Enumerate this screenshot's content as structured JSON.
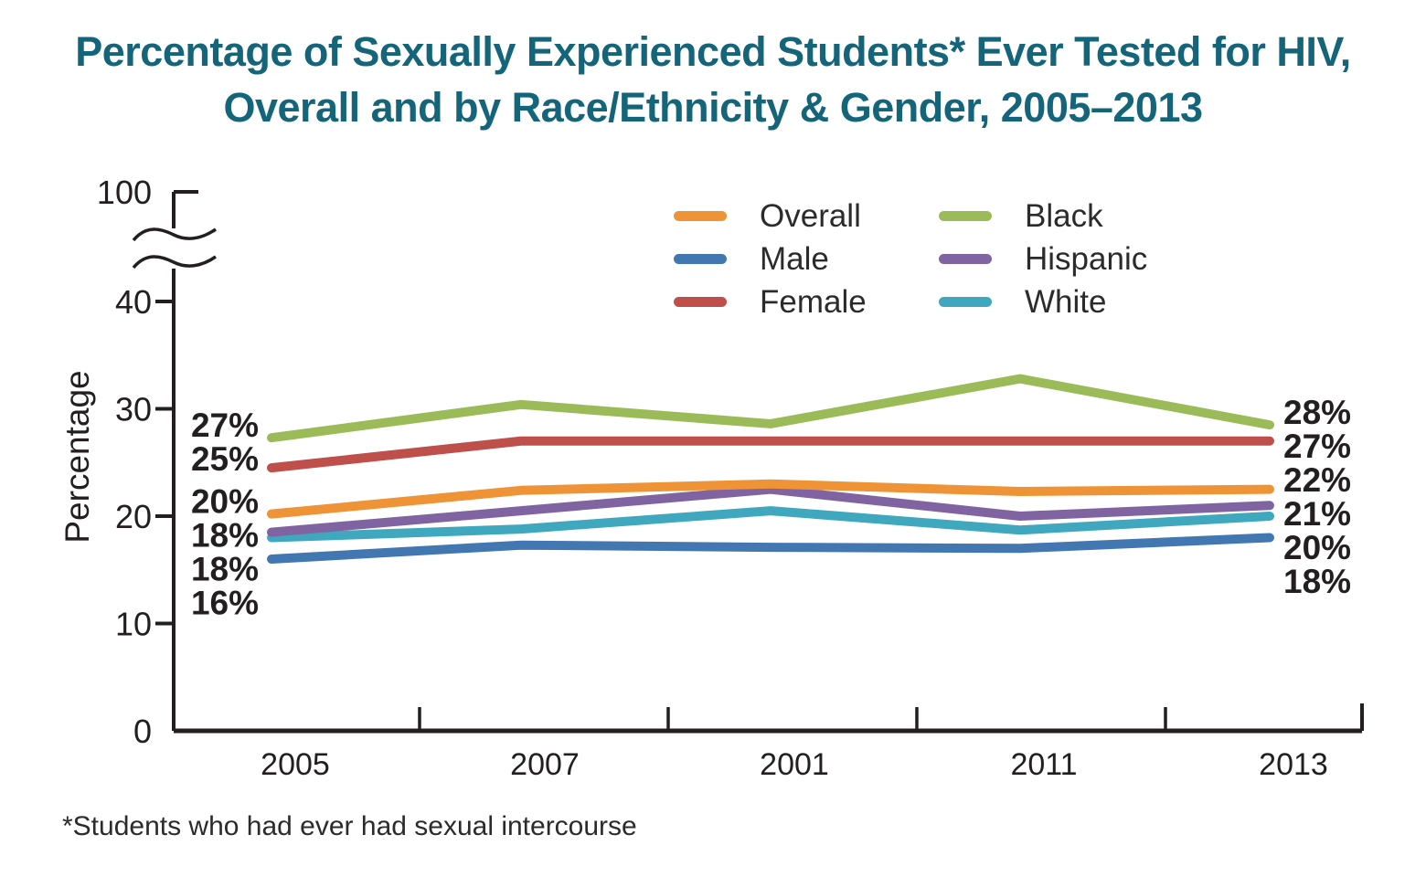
{
  "title": {
    "line1": "Percentage of Sexually Experienced Students* Ever Tested for HIV,",
    "line2": "Overall and by Race/Ethnicity & Gender, 2005–2013",
    "color": "#15657A"
  },
  "footnote": "*Students who had ever had sexual intercourse",
  "y_axis": {
    "label": "Percentage",
    "tick_labels": [
      "0",
      "10",
      "20",
      "30",
      "40",
      "100"
    ],
    "has_axis_break": true,
    "break_between": [
      40,
      100
    ]
  },
  "x_axis": {
    "labels": [
      "2005",
      "2007",
      "2001",
      "2011",
      "2013"
    ]
  },
  "legend": {
    "columns": [
      [
        "Overall",
        "Male",
        "Female"
      ],
      [
        "Black",
        "Hispanic",
        "White"
      ]
    ]
  },
  "chart_data": {
    "type": "line",
    "title": "Percentage of Sexually Experienced Students Ever Tested for HIV, Overall and by Race/Ethnicity & Gender, 2005–2013",
    "x": [
      "2005",
      "2007",
      "2001",
      "2011",
      "2013"
    ],
    "ylabel": "Percentage",
    "ylim_visible": [
      0,
      40
    ],
    "broken_axis_top_tick": 100,
    "grid": false,
    "legend_position": "top-center-two-columns",
    "axis_color": "#231F20",
    "series": [
      {
        "name": "Overall",
        "color": "#EE9336",
        "values": [
          20.2,
          22.4,
          23.0,
          22.3,
          22.5
        ],
        "label_left": "20%",
        "label_right": "22%"
      },
      {
        "name": "Male",
        "color": "#4377B2",
        "values": [
          16.0,
          17.3,
          17.1,
          17.0,
          18.0
        ],
        "label_left": "16%",
        "label_right": "18%"
      },
      {
        "name": "Female",
        "color": "#BE4F4B",
        "values": [
          24.5,
          27.0,
          27.0,
          27.0,
          27.0
        ],
        "label_left": "25%",
        "label_right": "27%"
      },
      {
        "name": "Black",
        "color": "#9BBB59",
        "values": [
          27.3,
          30.4,
          28.6,
          32.8,
          28.5
        ],
        "label_left": "27%",
        "label_right": "28%"
      },
      {
        "name": "Hispanic",
        "color": "#8064A2",
        "values": [
          18.5,
          20.5,
          22.5,
          20.0,
          21.0
        ],
        "label_left": "18%",
        "label_right": "21%"
      },
      {
        "name": "White",
        "color": "#3FA7BE",
        "values": [
          18.0,
          18.8,
          20.5,
          18.7,
          20.0
        ],
        "label_left": "18%",
        "label_right": "20%"
      }
    ]
  }
}
